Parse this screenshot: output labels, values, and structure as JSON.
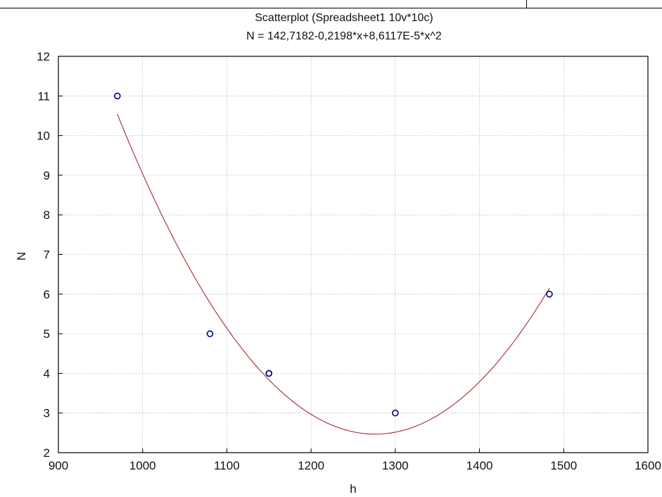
{
  "chart_data": {
    "type": "scatter",
    "title": "Scatterplot (Spreadsheet1 10v*10c)",
    "subtitle": "N = 142,7182-0,2198*x+8,6117E-5*x^2",
    "xlabel": "h",
    "ylabel": "N",
    "xlim": [
      900,
      1600
    ],
    "ylim": [
      2,
      12
    ],
    "xticks": [
      900,
      1000,
      1100,
      1200,
      1300,
      1400,
      1500,
      1600
    ],
    "yticks": [
      2,
      3,
      4,
      5,
      6,
      7,
      8,
      9,
      10,
      11,
      12
    ],
    "grid": true,
    "points": [
      {
        "x": 970,
        "y": 11
      },
      {
        "x": 1080,
        "y": 5
      },
      {
        "x": 1150,
        "y": 4
      },
      {
        "x": 1150,
        "y": 4
      },
      {
        "x": 1300,
        "y": 3
      },
      {
        "x": 1483,
        "y": 6
      }
    ],
    "fit": {
      "type": "quadratic",
      "coefficients": [
        142.7182,
        -0.2198,
        8.6117e-05
      ],
      "x_range": [
        970,
        1483
      ]
    },
    "colors": {
      "points": "#00008b",
      "fit": "#b0393c",
      "grid": "#a0a0a0"
    }
  }
}
